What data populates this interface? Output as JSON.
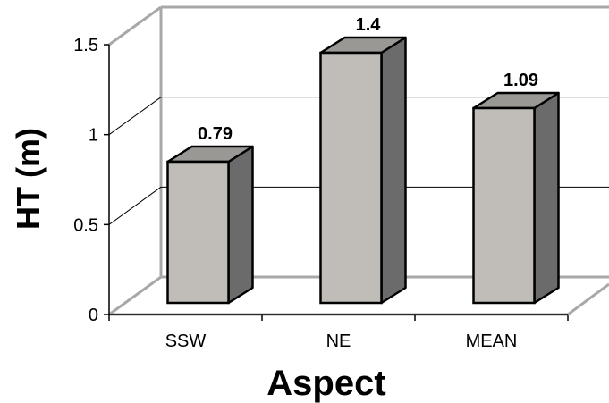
{
  "chart_data": {
    "type": "bar",
    "title": "",
    "xlabel": "Aspect",
    "ylabel": "HT (m)",
    "categories": [
      "SSW",
      "NE",
      "MEAN"
    ],
    "values": [
      0.79,
      1.4,
      1.09
    ],
    "data_labels": [
      "0.79",
      "1.4",
      "1.09"
    ],
    "yticks": [
      "0",
      "0.5",
      "1",
      "1.5"
    ],
    "ylim": [
      0,
      1.5
    ],
    "grid": true,
    "legend": "none",
    "style": "3d-column",
    "colors": {
      "bar_front": "#c0bdb8",
      "bar_top": "#9a9894",
      "bar_side": "#6b6b6b",
      "wall_lines": "#a8a8a8"
    }
  }
}
